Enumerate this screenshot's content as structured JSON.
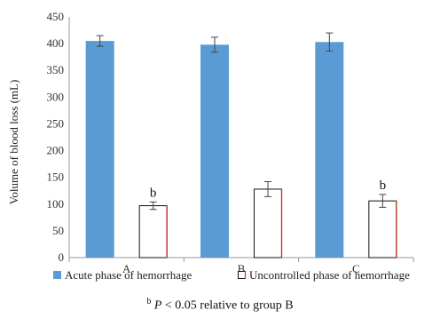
{
  "chart_data": {
    "type": "bar",
    "categories": [
      "A",
      "B",
      "C"
    ],
    "series": [
      {
        "name": "Acute phase of hemorrhage",
        "values": [
          405,
          398,
          403
        ],
        "errors": [
          10,
          14,
          17
        ],
        "color": "#5b9bd5",
        "fill": "solid"
      },
      {
        "name": "Uncontrolled phase of hemorrhage",
        "values": [
          97,
          128,
          106
        ],
        "errors": [
          7,
          14,
          12
        ],
        "color": "#c0392b",
        "fill": "white"
      }
    ],
    "annotations": [
      {
        "category": "A",
        "series": 1,
        "text": "b"
      },
      {
        "category": "C",
        "series": 1,
        "text": "b"
      }
    ],
    "xlabel": "",
    "ylabel": "Volume of blood loss (mL)",
    "ylim": [
      0,
      450
    ],
    "yticks": [
      0,
      50,
      100,
      150,
      200,
      250,
      300,
      350,
      400,
      450
    ],
    "grid": false,
    "legend": "bottom"
  },
  "footnote": {
    "superscript": "b",
    "p_symbol": "P",
    "text": " < 0.05 relative to group B"
  }
}
